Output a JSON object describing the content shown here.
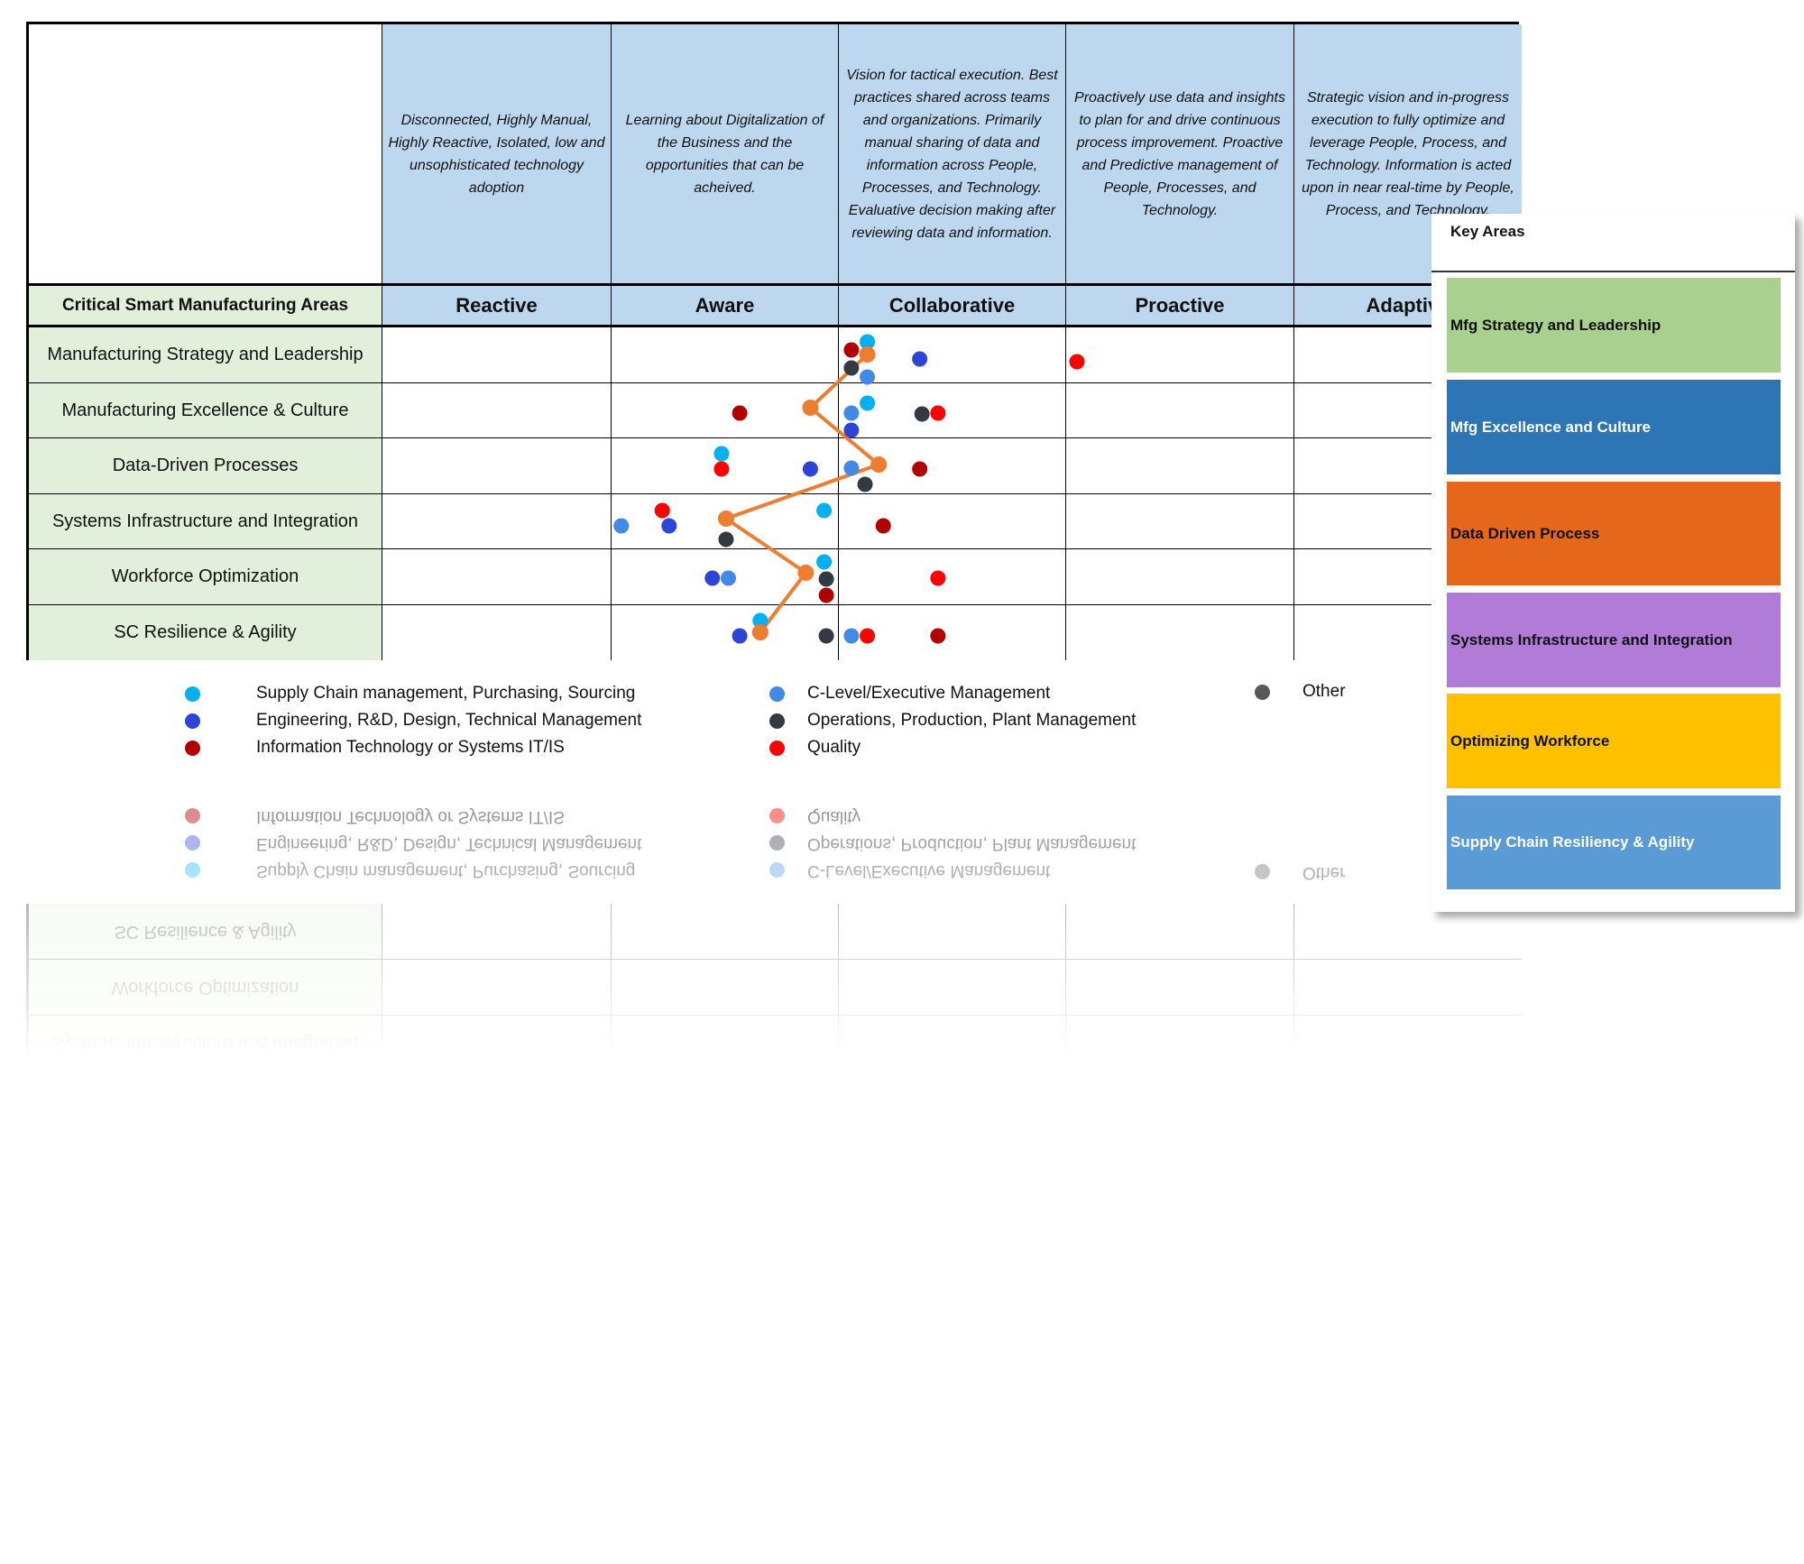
{
  "header": {
    "area_label": "Critical Smart Manufacturing Areas",
    "levels": [
      "Reactive",
      "Aware",
      "Collaborative",
      "Proactive",
      "Adaptive"
    ],
    "descriptions": [
      "Disconnected, Highly Manual, Highly Reactive, Isolated, low and unsophisticated technology adoption",
      "Learning about Digitalization of the Business and the opportunities that can be acheived.",
      "Vision for tactical execution. Best practices shared across teams and organizations. Primarily manual sharing of data and information across People, Processes, and Technology. Evaluative decision making after reviewing data and information.",
      "Proactively use data and insights to plan for and drive continuous process improvement. Proactive and Predictive management of People, Processes, and Technology.",
      "Strategic vision and in-progress execution to fully optimize and leverage People, Process, and Technology. Information is acted upon in near real-time by People, Process, and Technology."
    ]
  },
  "rows": [
    "Manufacturing Strategy and Leadership",
    "Manufacturing Excellence & Culture",
    "Data-Driven Processes",
    "Systems Infrastructure and Integration",
    "Workforce Optimization",
    "SC Resilience & Agility"
  ],
  "legend": [
    {
      "label": "Supply Chain management, Purchasing, Sourcing",
      "color": "#00B0F0"
    },
    {
      "label": "Engineering, R&D, Design, Technical Management",
      "color": "#2E44D6"
    },
    {
      "label": "Information Technology or Systems IT/IS",
      "color": "#B00000"
    },
    {
      "label": "C-Level/Executive Management",
      "color": "#4389E6"
    },
    {
      "label": "Operations, Production, Plant Management",
      "color": "#333A42"
    },
    {
      "label": "Quality",
      "color": "#FF0000"
    },
    {
      "label": "Other",
      "color": "#595959"
    }
  ],
  "key_areas": {
    "title": "Key Areas",
    "items": [
      {
        "label": "Mfg Strategy and Leadership",
        "bg": "#A9D08E",
        "fg": "#111111"
      },
      {
        "label": "Mfg Excellence and Culture",
        "bg": "#2E75B6",
        "fg": "#FFFFFF"
      },
      {
        "label": "Data Driven Process",
        "bg": "#E5671B",
        "fg": "#111111"
      },
      {
        "label": "Systems Infrastructure and Integration",
        "bg": "#B07CD8",
        "fg": "#111111"
      },
      {
        "label": "Optimizing Workforce",
        "bg": "#FFC000",
        "fg": "#111111"
      },
      {
        "label": "Supply Chain Resiliency & Agility",
        "bg": "#5B9BD5",
        "fg": "#FFFFFF"
      }
    ]
  },
  "chart_data": {
    "type": "scatter",
    "x_scale": "maturity level (Reactive=1 ... Adaptive=5, continuous within column)",
    "xlim": [
      1,
      6
    ],
    "categories": [
      "Manufacturing Strategy and Leadership",
      "Manufacturing Excellence & Culture",
      "Data-Driven Processes",
      "Systems Infrastructure and Integration",
      "Workforce Optimization",
      "SC Resilience & Agility"
    ],
    "series": [
      {
        "name": "Supply Chain management, Purchasing, Sourcing",
        "color": "#00B0F0",
        "values": [
          3.14,
          3.14,
          2.5,
          2.95,
          2.95,
          2.67
        ]
      },
      {
        "name": "Engineering, R&D, Design, Technical Management",
        "color": "#2E44D6",
        "values": [
          3.37,
          3.07,
          2.89,
          2.27,
          2.46,
          2.58
        ]
      },
      {
        "name": "Information Technology or Systems IT/IS",
        "color": "#B00000",
        "values": [
          3.07,
          2.58,
          3.37,
          3.21,
          2.96,
          3.45
        ]
      },
      {
        "name": "C-Level/Executive Management",
        "color": "#4389E6",
        "values": [
          3.14,
          3.07,
          3.07,
          2.06,
          2.53,
          3.07
        ]
      },
      {
        "name": "Operations, Production, Plant Management",
        "color": "#333A42",
        "values": [
          3.07,
          3.38,
          3.13,
          2.52,
          2.96,
          2.96
        ]
      },
      {
        "name": "Quality",
        "color": "#FF0000",
        "values": [
          4.06,
          3.45,
          2.5,
          2.24,
          3.45,
          3.14
        ]
      },
      {
        "color": "#ED7D31",
        "line": true,
        "values": [
          3.14,
          2.89,
          3.19,
          2.52,
          2.87,
          2.67
        ]
      }
    ],
    "grid": true
  }
}
